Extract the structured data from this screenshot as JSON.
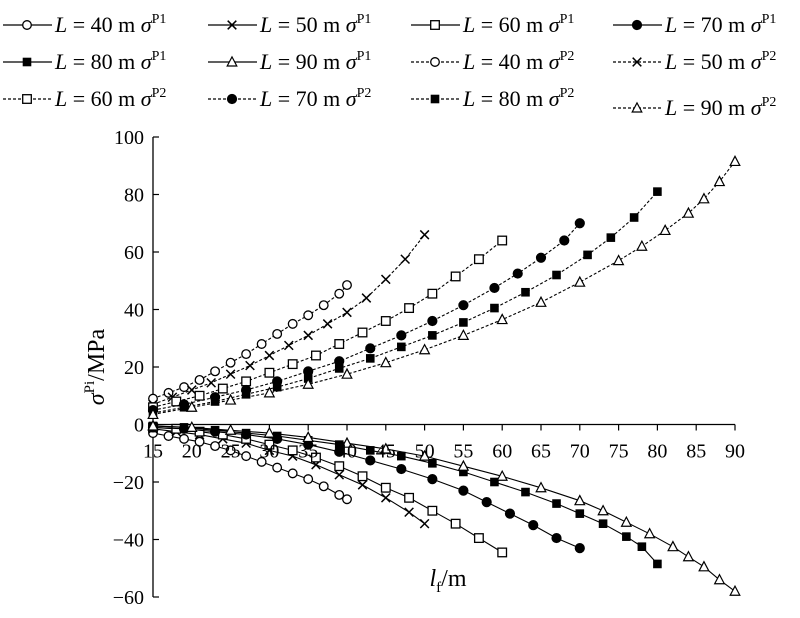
{
  "chart_data": {
    "type": "line",
    "title": "",
    "xlabel": {
      "var": "l",
      "sub": "f",
      "unit": "/m"
    },
    "ylabel": {
      "var": "σ",
      "sup": "Pi",
      "unit": "/MPa"
    },
    "xlim": [
      15,
      90
    ],
    "ylim": [
      -60,
      100
    ],
    "xticks": [
      "15",
      "20",
      "25",
      "30",
      "35",
      "40",
      "45",
      "50",
      "55",
      "60",
      "65",
      "70",
      "75",
      "80",
      "85",
      "90"
    ],
    "yticks": [
      "100",
      "80",
      "60",
      "40",
      "20",
      "0",
      "−20",
      "−40",
      "−60"
    ],
    "legend_position": "top",
    "series": [
      {
        "name": "L = 40 m σP1",
        "L": "40",
        "sup": "P1",
        "marker": "circle-open",
        "dash": "solid",
        "x": [
          15,
          17,
          19,
          21,
          23,
          25,
          27,
          29,
          31,
          33,
          35,
          37,
          39,
          40
        ],
        "y": [
          -3,
          -4,
          -5,
          -6,
          -7.5,
          -9,
          -11,
          -13,
          -15,
          -17,
          -19,
          -21.5,
          -24.5,
          -26
        ]
      },
      {
        "name": "L = 50 m σP1",
        "L": "50",
        "sup": "P1",
        "marker": "x",
        "dash": "solid",
        "x": [
          15,
          18,
          21,
          24,
          27,
          30,
          33,
          36,
          39,
          42,
          45,
          48,
          50
        ],
        "y": [
          -1.5,
          -2.5,
          -3.5,
          -5,
          -6.5,
          -9,
          -11,
          -14,
          -17.5,
          -21,
          -25.5,
          -30.5,
          -34.5
        ]
      },
      {
        "name": "L = 60 m σP1",
        "L": "60",
        "sup": "P1",
        "marker": "square-open",
        "dash": "solid",
        "x": [
          15,
          18,
          21,
          24,
          27,
          30,
          33,
          36,
          39,
          42,
          45,
          48,
          51,
          54,
          57,
          60
        ],
        "y": [
          -1,
          -1.5,
          -2.5,
          -3.5,
          -5,
          -7,
          -9,
          -11.5,
          -14.5,
          -18,
          -22,
          -25.5,
          -30,
          -34.5,
          -39.5,
          -44.5
        ]
      },
      {
        "name": "L = 70 m σP1",
        "L": "70",
        "sup": "P1",
        "marker": "circle-filled",
        "dash": "solid",
        "x": [
          15,
          19,
          23,
          27,
          31,
          35,
          39,
          43,
          47,
          51,
          55,
          58,
          61,
          64,
          67,
          70
        ],
        "y": [
          -1,
          -1.5,
          -2.5,
          -3.5,
          -5,
          -7,
          -9.5,
          -12.5,
          -15.5,
          -19,
          -23,
          -27,
          -31,
          -35,
          -39.5,
          -43
        ]
      },
      {
        "name": "L = 80 m σP1",
        "L": "80",
        "sup": "P1",
        "marker": "square-filled",
        "dash": "solid",
        "x": [
          15,
          19,
          23,
          27,
          31,
          35,
          39,
          43,
          47,
          51,
          55,
          59,
          63,
          67,
          70,
          73,
          76,
          78,
          80
        ],
        "y": [
          -0.5,
          -1,
          -2,
          -3,
          -4,
          -5.5,
          -7,
          -9,
          -11,
          -13.5,
          -16.5,
          -20,
          -23.5,
          -27.5,
          -31,
          -34.5,
          -39,
          -42.5,
          -48.5
        ]
      },
      {
        "name": "L = 90 m σP1",
        "L": "90",
        "sup": "P1",
        "marker": "triangle-open",
        "dash": "solid",
        "x": [
          15,
          20,
          25,
          30,
          35,
          40,
          45,
          50,
          55,
          60,
          65,
          70,
          73,
          76,
          79,
          82,
          84,
          86,
          88,
          90
        ],
        "y": [
          -0.5,
          -1,
          -2,
          -3,
          -4.5,
          -6.5,
          -8.5,
          -11,
          -14.5,
          -18,
          -22,
          -26.5,
          -30,
          -34,
          -38,
          -42.5,
          -46,
          -49.5,
          -54,
          -58
        ]
      },
      {
        "name": "L = 40 m σP2",
        "L": "40",
        "sup": "P2",
        "marker": "circle-open",
        "dash": "dashed",
        "x": [
          15,
          17,
          19,
          21,
          23,
          25,
          27,
          29,
          31,
          33,
          35,
          37,
          39,
          40
        ],
        "y": [
          9,
          11,
          13,
          15.5,
          18.5,
          21.5,
          24.5,
          28,
          31.5,
          35,
          38,
          41.5,
          45.5,
          48.5
        ]
      },
      {
        "name": "L = 50 m σP2",
        "L": "50",
        "sup": "P2",
        "marker": "x",
        "dash": "dashed",
        "x": [
          15,
          17.5,
          20,
          22.5,
          25,
          27.5,
          30,
          32.5,
          35,
          37.5,
          40,
          42.5,
          45,
          47.5,
          50
        ],
        "y": [
          7,
          9.5,
          12,
          14.5,
          17.5,
          20.5,
          24,
          27.5,
          31,
          35,
          39,
          44,
          50.5,
          57.5,
          66
        ]
      },
      {
        "name": "L = 60 m σP2",
        "L": "60",
        "sup": "P2",
        "marker": "square-open",
        "dash": "dashed",
        "x": [
          15,
          18,
          21,
          24,
          27,
          30,
          33,
          36,
          39,
          42,
          45,
          48,
          51,
          54,
          57,
          60
        ],
        "y": [
          6,
          8,
          10,
          12.5,
          15,
          18,
          21,
          24,
          28,
          32,
          36,
          40.5,
          45.5,
          51.5,
          57.5,
          64
        ]
      },
      {
        "name": "L = 70 m σP2",
        "L": "70",
        "sup": "P2",
        "marker": "circle-filled",
        "dash": "dashed",
        "x": [
          15,
          19,
          23,
          27,
          31,
          35,
          39,
          43,
          47,
          51,
          55,
          59,
          62,
          65,
          68,
          70
        ],
        "y": [
          5,
          7,
          9.5,
          12,
          15,
          18.5,
          22,
          26.5,
          31,
          36,
          41.5,
          47.5,
          52.5,
          58,
          64,
          70
        ]
      },
      {
        "name": "L = 80 m σP2",
        "L": "80",
        "sup": "P2",
        "marker": "square-filled",
        "dash": "dashed",
        "x": [
          15,
          19,
          23,
          27,
          31,
          35,
          39,
          43,
          47,
          51,
          55,
          59,
          63,
          67,
          71,
          74,
          77,
          80
        ],
        "y": [
          4,
          6,
          8,
          10.5,
          13,
          16,
          19.5,
          23,
          27,
          31,
          35.5,
          40.5,
          46,
          52,
          59,
          65,
          72,
          81
        ]
      },
      {
        "name": "L = 90 m σP2",
        "L": "90",
        "sup": "P2",
        "marker": "triangle-open",
        "dash": "dashed",
        "x": [
          15,
          20,
          25,
          30,
          35,
          40,
          45,
          50,
          55,
          60,
          65,
          70,
          75,
          78,
          81,
          84,
          86,
          88,
          90
        ],
        "y": [
          3.5,
          6,
          8.5,
          11,
          14,
          17.5,
          21.5,
          26,
          31,
          36.5,
          42.5,
          49.5,
          57,
          62,
          67.5,
          73.5,
          78.5,
          84.5,
          91.5
        ]
      }
    ]
  }
}
